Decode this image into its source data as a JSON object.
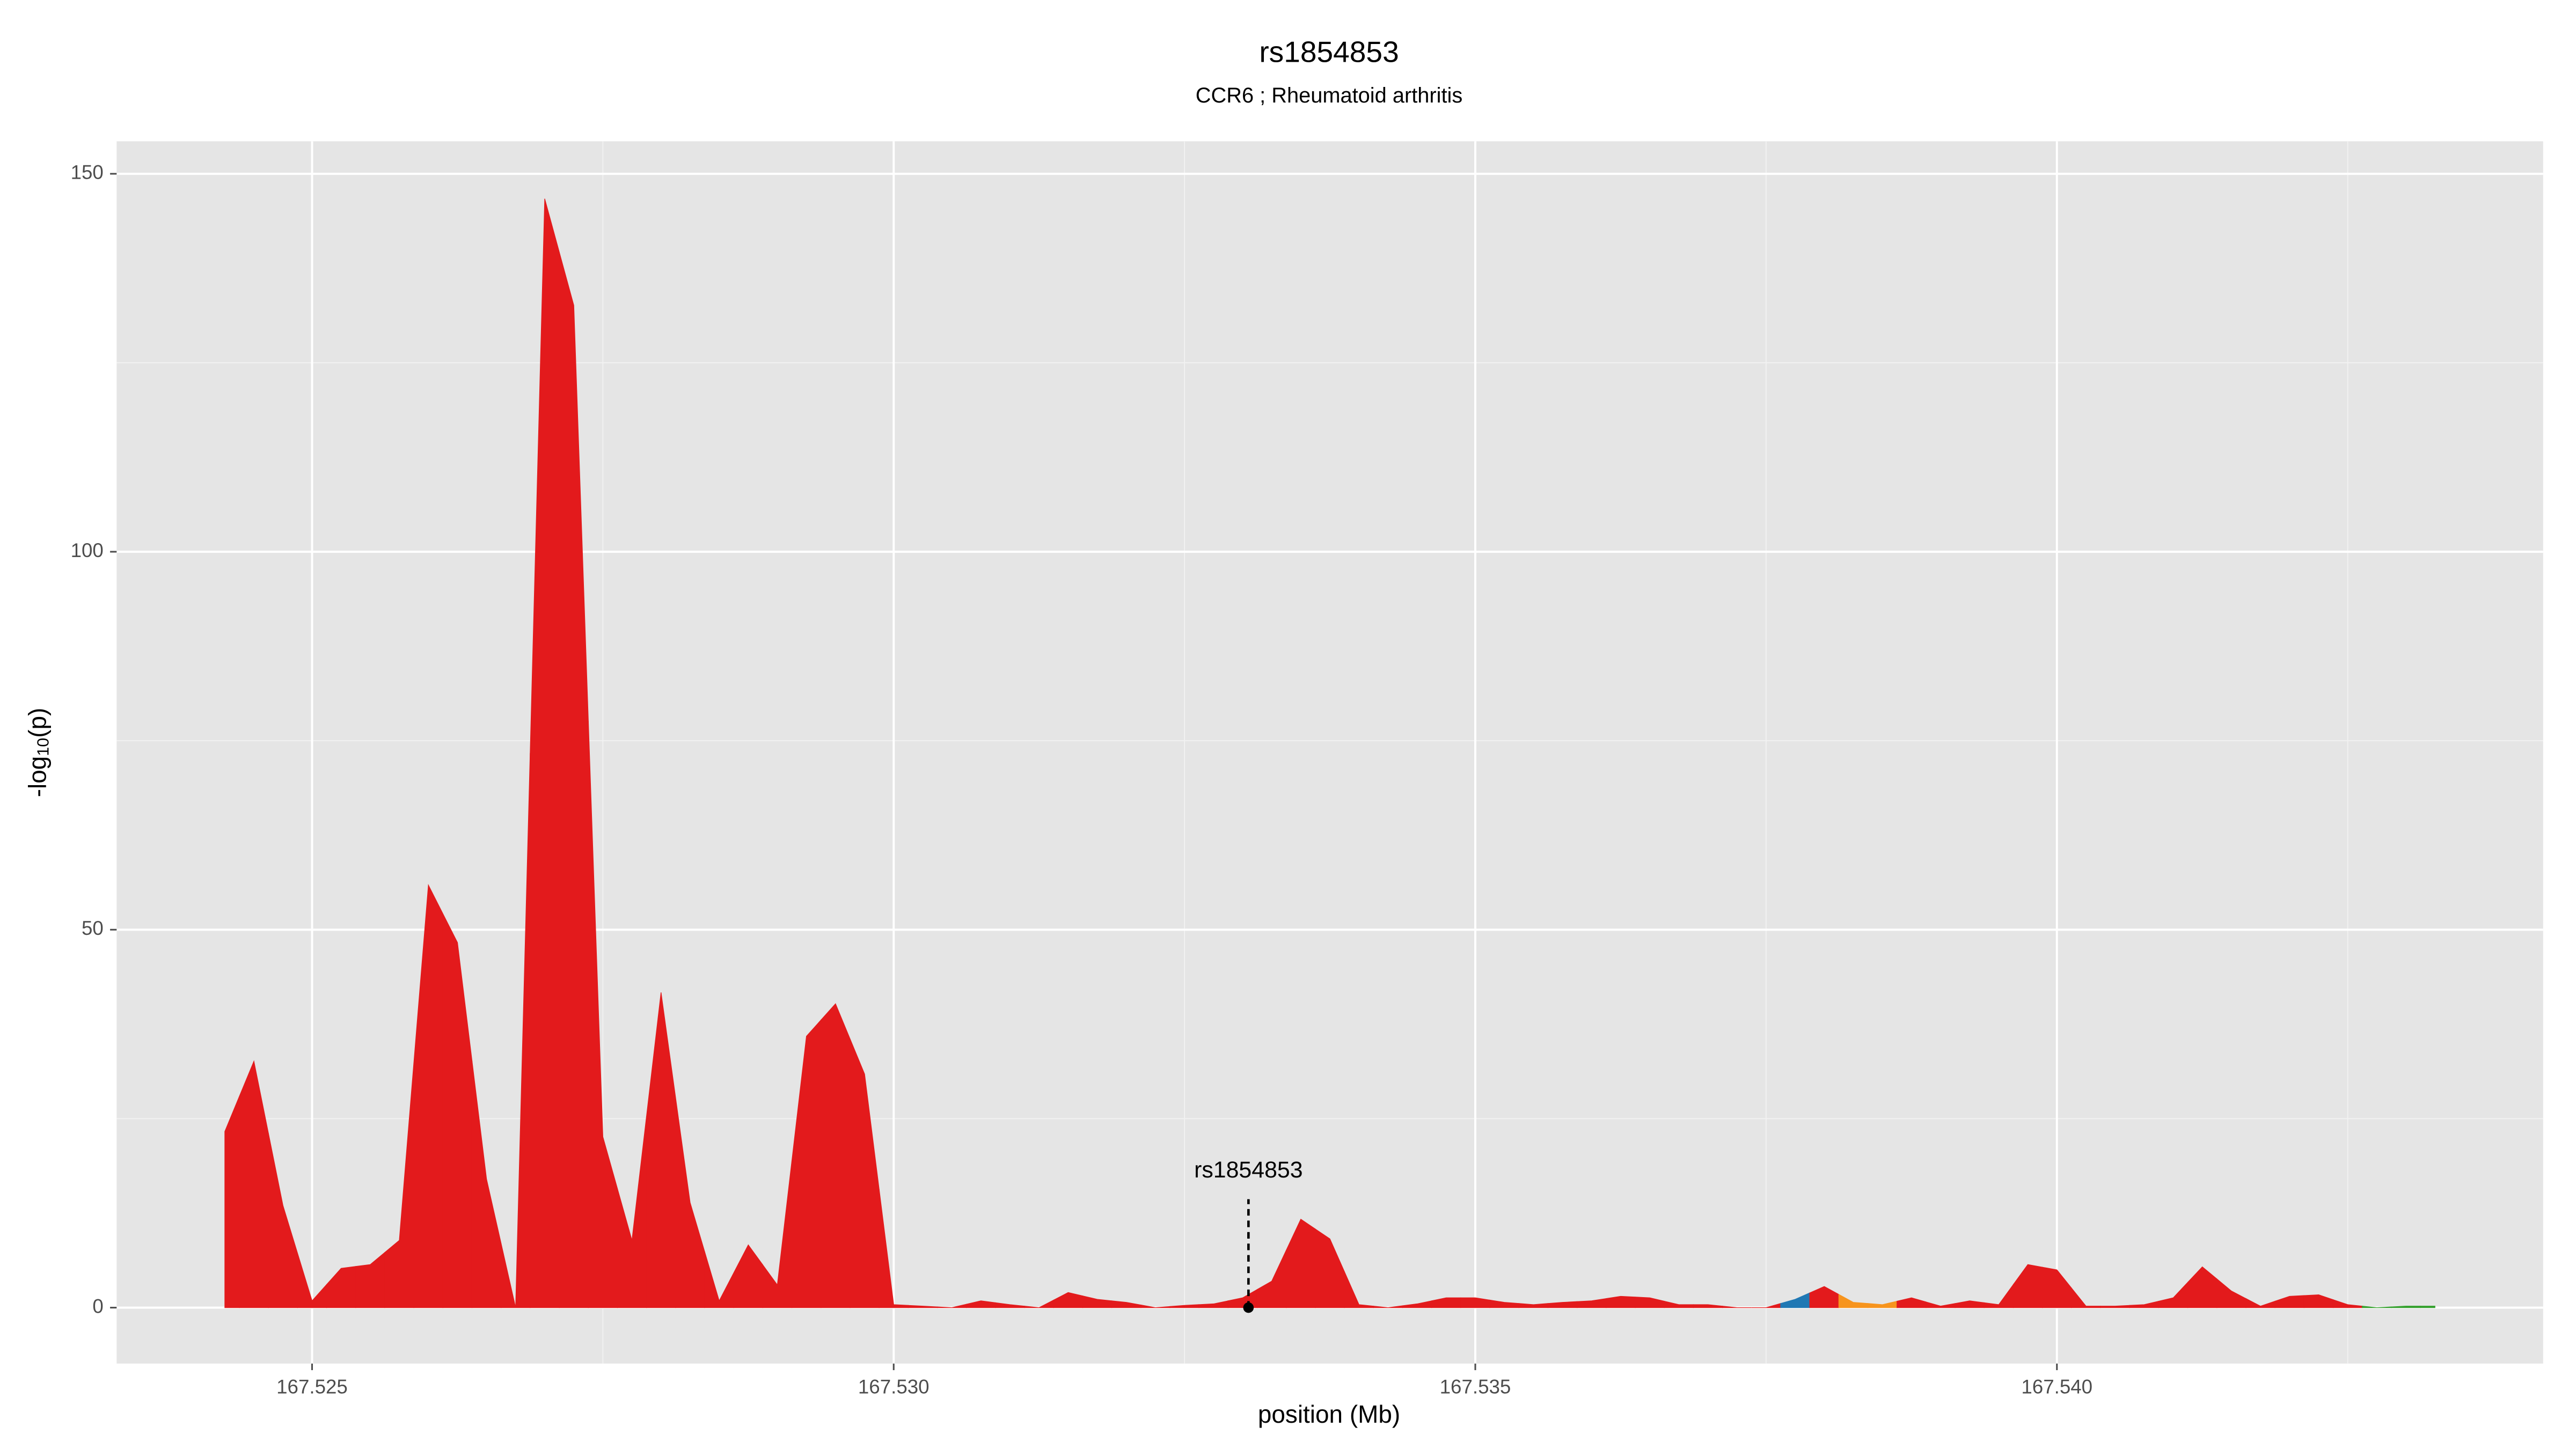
{
  "chart_data": {
    "type": "area",
    "title": "rs1854853",
    "subtitle": "CCR6 ; Rheumatoid arthritis",
    "xlabel": "position (Mb)",
    "ylabel_parts": [
      "-log",
      "10",
      "(p)"
    ],
    "x": [
      167.52425,
      167.5245,
      167.52475,
      167.525,
      167.52525,
      167.5255,
      167.52575,
      167.526,
      167.52625,
      167.5265,
      167.52675,
      167.527,
      167.52725,
      167.5275,
      167.52775,
      167.528,
      167.52825,
      167.5285,
      167.52875,
      167.529,
      167.52925,
      167.5295,
      167.52975,
      167.53,
      167.53025,
      167.5305,
      167.53075,
      167.531,
      167.53125,
      167.5315,
      167.53175,
      167.532,
      167.53225,
      167.5325,
      167.53275,
      167.533,
      167.53325,
      167.5335,
      167.53375,
      167.534,
      167.53425,
      167.5345,
      167.53475,
      167.535,
      167.53525,
      167.5355,
      167.53575,
      167.536,
      167.53625,
      167.5365,
      167.53675,
      167.537,
      167.53725,
      167.5375,
      167.53775,
      167.538,
      167.53825,
      167.5385,
      167.53875,
      167.539,
      167.53925,
      167.5395,
      167.53975,
      167.54,
      167.54025,
      167.5405,
      167.54075,
      167.541,
      167.54125,
      167.5415,
      167.54175,
      167.542,
      167.54225,
      167.5425,
      167.54275,
      167.543,
      167.54325
    ],
    "values": [
      23.3,
      32.6,
      13.5,
      0.9,
      5.2,
      5.7,
      8.9,
      55.9,
      48.3,
      17.0,
      0,
      146.7,
      132.6,
      22.6,
      8.9,
      41.7,
      13.9,
      0.9,
      8.3,
      3.0,
      35.9,
      40.2,
      30.9,
      0.4,
      0.2,
      0,
      0.9,
      0.4,
      0,
      2.0,
      1.1,
      0.7,
      0,
      0.3,
      0.5,
      1.3,
      3.5,
      11.7,
      9.1,
      0.4,
      0,
      0.5,
      1.3,
      1.3,
      0.7,
      0.4,
      0.7,
      0.9,
      1.5,
      1.3,
      0.4,
      0.4,
      0,
      0,
      1.1,
      2.8,
      0.7,
      0.4,
      1.3,
      0.2,
      0.9,
      0.4,
      5.7,
      5.0,
      0.2,
      0.2,
      0.4,
      1.3,
      5.4,
      2.2,
      0.2,
      1.5,
      1.7,
      0.4,
      0,
      0.2,
      0.2
    ],
    "colors": [
      "#e31a1c",
      "#e31a1c",
      "#e31a1c",
      "#e31a1c",
      "#e31a1c",
      "#e31a1c",
      "#e31a1c",
      "#e31a1c",
      "#e31a1c",
      "#e31a1c",
      "#e31a1c",
      "#e31a1c",
      "#e31a1c",
      "#e31a1c",
      "#e31a1c",
      "#e31a1c",
      "#e31a1c",
      "#e31a1c",
      "#e31a1c",
      "#e31a1c",
      "#e31a1c",
      "#e31a1c",
      "#e31a1c",
      "#e31a1c",
      "#e31a1c",
      "#e31a1c",
      "#e31a1c",
      "#e31a1c",
      "#e31a1c",
      "#e31a1c",
      "#e31a1c",
      "#e31a1c",
      "#e31a1c",
      "#e31a1c",
      "#e31a1c",
      "#e31a1c",
      "#e31a1c",
      "#e31a1c",
      "#e31a1c",
      "#e31a1c",
      "#e31a1c",
      "#e31a1c",
      "#e31a1c",
      "#e31a1c",
      "#e31a1c",
      "#e31a1c",
      "#e31a1c",
      "#e31a1c",
      "#e31a1c",
      "#e31a1c",
      "#e31a1c",
      "#e31a1c",
      "#e31a1c",
      "#e31a1c",
      "#1f78b4",
      "#e31a1c",
      "#f7941d",
      "#f7941d",
      "#e31a1c",
      "#e31a1c",
      "#e31a1c",
      "#e31a1c",
      "#e31a1c",
      "#e31a1c",
      "#e31a1c",
      "#e31a1c",
      "#e31a1c",
      "#e31a1c",
      "#e31a1c",
      "#e31a1c",
      "#e31a1c",
      "#e31a1c",
      "#e31a1c",
      "#e31a1c",
      "#33a02c",
      "#33a02c",
      "#33a02c"
    ],
    "annotation": {
      "label": "rs1854853",
      "x": 167.53305,
      "y": 0
    },
    "xlim": [
      167.52332,
      167.54418
    ],
    "ylim": [
      -7.4,
      154.3
    ],
    "xticks": [
      167.525,
      {
        "value": 167.53,
        "label": "167.530"
      },
      167.535,
      {
        "value": 167.54,
        "label": "167.540"
      }
    ],
    "yticks": [
      0,
      50,
      100,
      150
    ],
    "x_minor_grid": [
      167.5275,
      167.5325,
      167.5375,
      167.5425
    ],
    "y_minor_grid": [
      25,
      75,
      125
    ],
    "grid": true
  }
}
